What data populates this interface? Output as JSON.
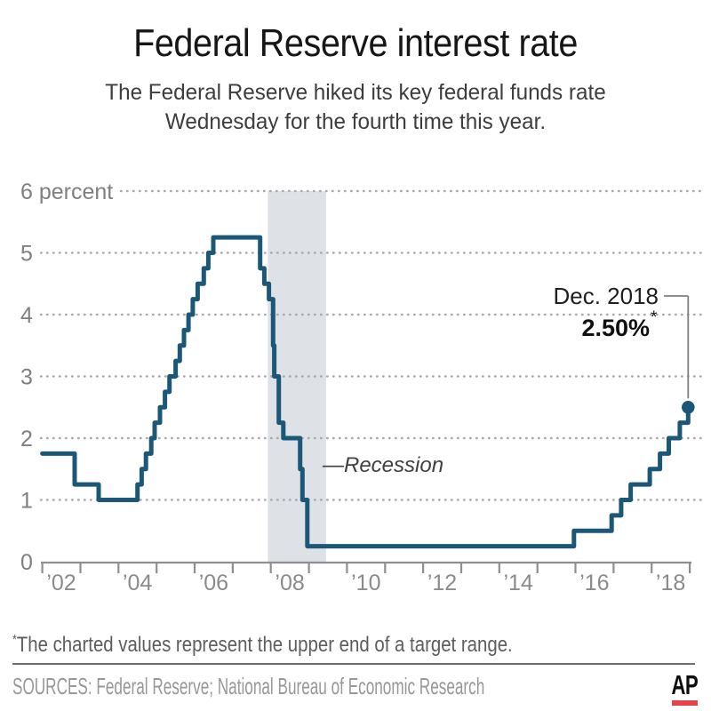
{
  "header": {
    "title": "Federal Reserve interest rate",
    "subtitle_line1": "The Federal Reserve hiked its key federal funds rate",
    "subtitle_line2": "Wednesday for the fourth time this year."
  },
  "chart_data": {
    "type": "line",
    "subtype": "step",
    "title": "Federal Reserve interest rate",
    "ylabel": "percent",
    "ylim": [
      0,
      6
    ],
    "xlim": [
      2002,
      2019
    ],
    "grid": "dotted-horizontal",
    "colors": {
      "line": "#1b5878",
      "recession_band": "#dee1e6",
      "grid": "#a9a9a9",
      "axis": "#8f8f8f"
    },
    "y_ticks": [
      {
        "value": 6,
        "label": "6 percent"
      },
      {
        "value": 5,
        "label": "5"
      },
      {
        "value": 4,
        "label": "4"
      },
      {
        "value": 3,
        "label": "3"
      },
      {
        "value": 2,
        "label": "2"
      },
      {
        "value": 1,
        "label": "1"
      },
      {
        "value": 0,
        "label": "0"
      }
    ],
    "x_ticks": {
      "start_year": 2002,
      "end_year": 2019,
      "labels": [
        {
          "year": 2002,
          "label": "’02"
        },
        {
          "year": 2004,
          "label": "’04"
        },
        {
          "year": 2006,
          "label": "’06"
        },
        {
          "year": 2008,
          "label": "’08"
        },
        {
          "year": 2010,
          "label": "’10"
        },
        {
          "year": 2012,
          "label": "’12"
        },
        {
          "year": 2014,
          "label": "’14"
        },
        {
          "year": 2016,
          "label": "’16"
        },
        {
          "year": 2018,
          "label": "’18"
        }
      ]
    },
    "series": [
      {
        "name": "Federal funds target rate (upper end of range)",
        "color": "#1b5878",
        "points": [
          [
            2002.0,
            1.75
          ],
          [
            2002.85,
            1.25
          ],
          [
            2003.48,
            1.0
          ],
          [
            2004.5,
            1.25
          ],
          [
            2004.61,
            1.5
          ],
          [
            2004.72,
            1.75
          ],
          [
            2004.86,
            2.0
          ],
          [
            2004.95,
            2.25
          ],
          [
            2005.09,
            2.5
          ],
          [
            2005.22,
            2.75
          ],
          [
            2005.34,
            3.0
          ],
          [
            2005.5,
            3.25
          ],
          [
            2005.61,
            3.5
          ],
          [
            2005.72,
            3.75
          ],
          [
            2005.84,
            4.0
          ],
          [
            2005.95,
            4.25
          ],
          [
            2006.08,
            4.5
          ],
          [
            2006.24,
            4.75
          ],
          [
            2006.36,
            5.0
          ],
          [
            2006.49,
            5.25
          ],
          [
            2007.72,
            4.75
          ],
          [
            2007.83,
            4.5
          ],
          [
            2007.95,
            4.25
          ],
          [
            2008.06,
            3.5
          ],
          [
            2008.09,
            3.0
          ],
          [
            2008.21,
            2.25
          ],
          [
            2008.33,
            2.0
          ],
          [
            2008.77,
            1.5
          ],
          [
            2008.83,
            1.0
          ],
          [
            2008.96,
            0.25
          ],
          [
            2015.96,
            0.5
          ],
          [
            2016.95,
            0.75
          ],
          [
            2017.2,
            1.0
          ],
          [
            2017.45,
            1.25
          ],
          [
            2017.95,
            1.5
          ],
          [
            2018.22,
            1.75
          ],
          [
            2018.45,
            2.0
          ],
          [
            2018.74,
            2.25
          ],
          [
            2018.96,
            2.5
          ]
        ]
      }
    ],
    "recession_band": {
      "start": 2007.92,
      "end": 2009.45,
      "color": "#dee1e6",
      "label": "—Recession"
    },
    "end_annotation": {
      "date_label": "Dec. 2018",
      "value_label": "2.50%",
      "asterisk": "*",
      "point": [
        2018.96,
        2.5
      ]
    }
  },
  "footnote": {
    "asterisk": "*",
    "text": "The charted values represent the upper end of a target range."
  },
  "footer": {
    "sources": "SOURCES: Federal Reserve; National Bureau of Economic Research",
    "logo": "AP",
    "logo_color": "#e8414a"
  }
}
